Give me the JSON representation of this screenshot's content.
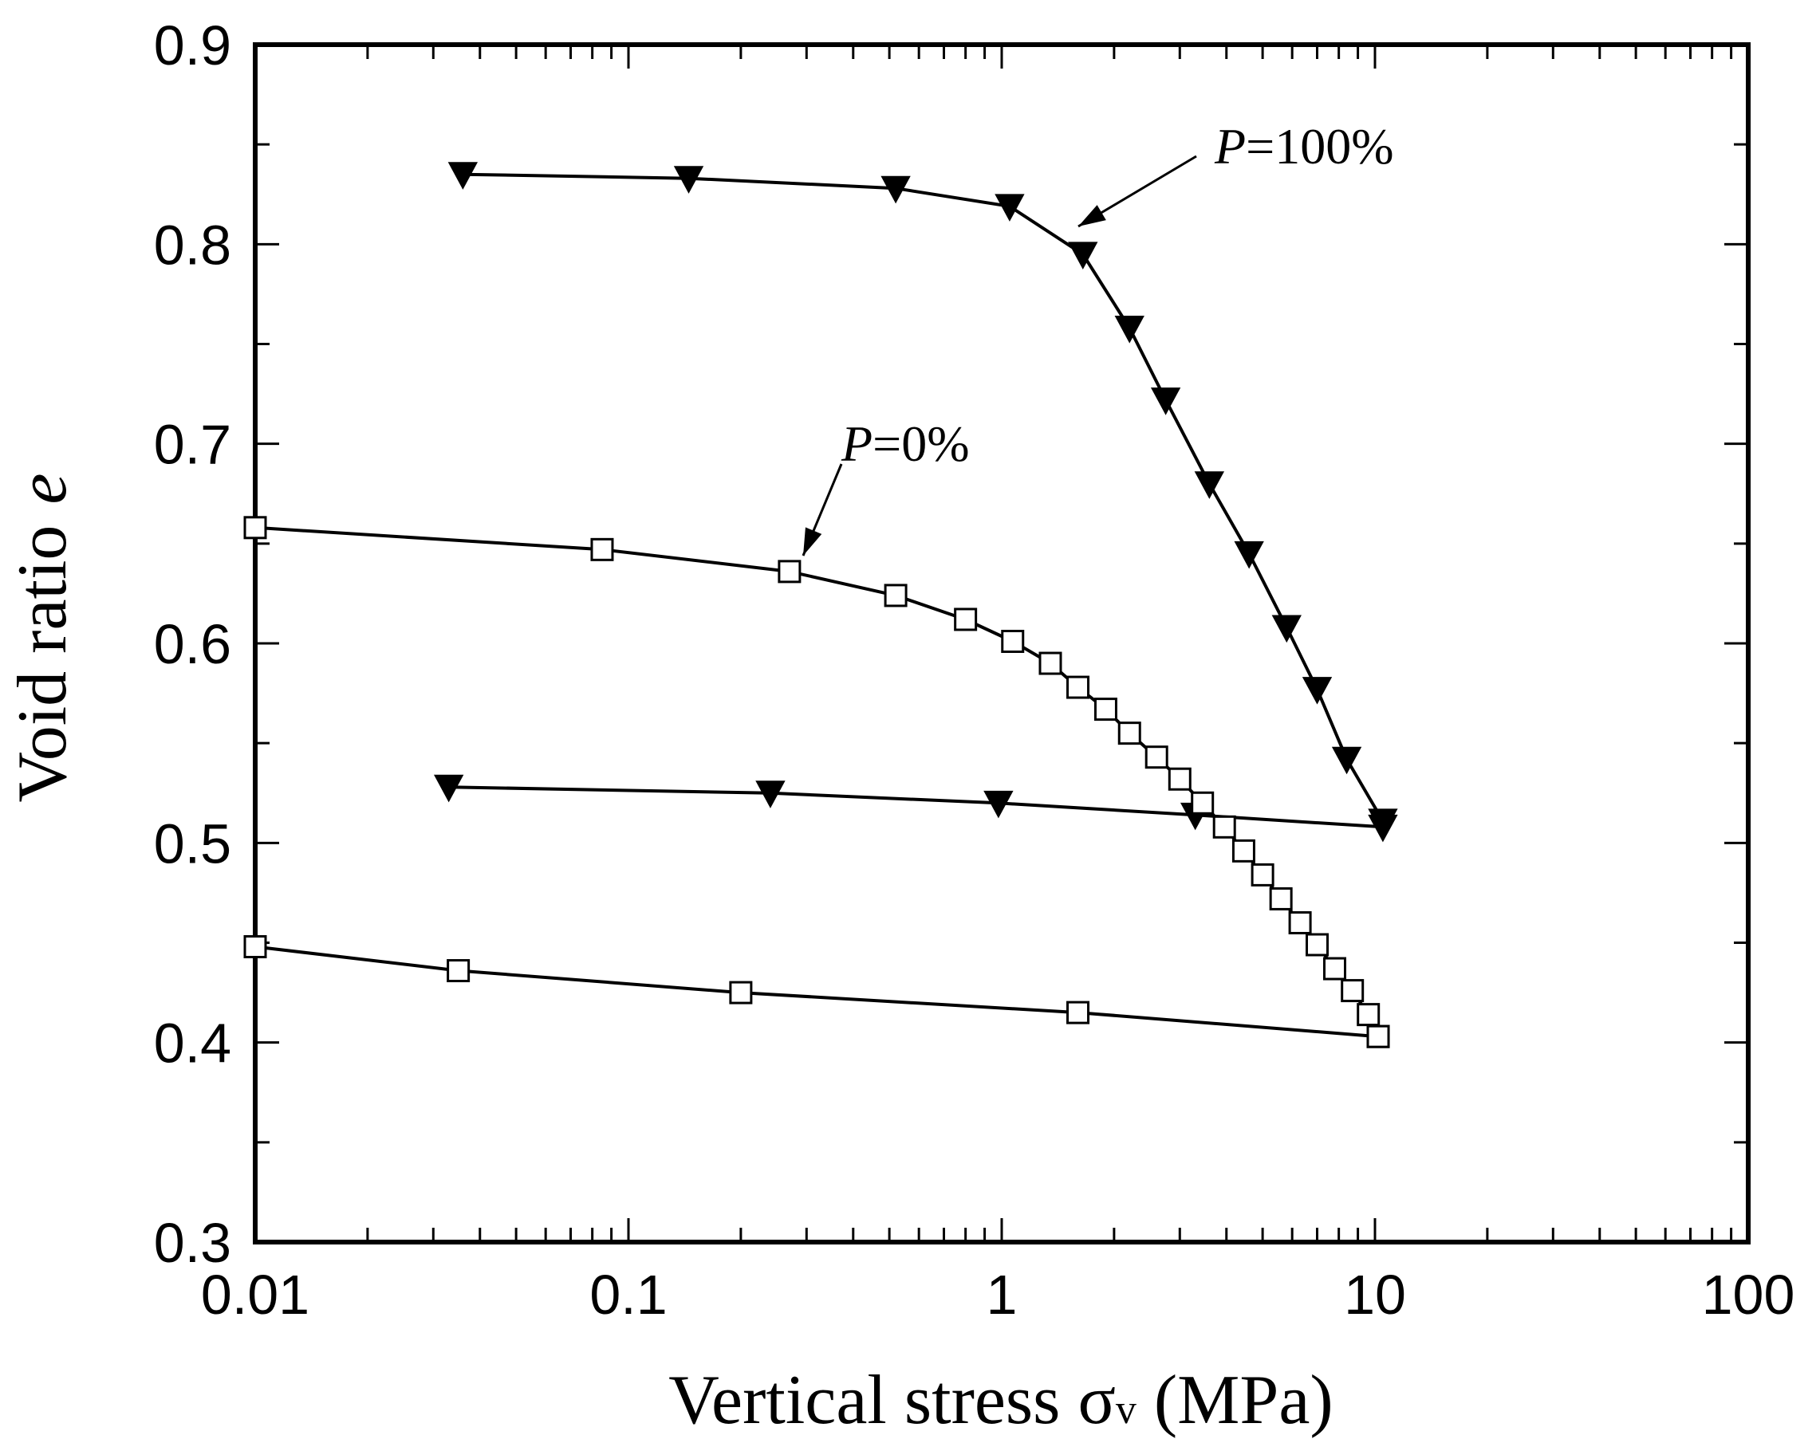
{
  "chart_data": {
    "type": "line",
    "xscale": "log",
    "xlim": [
      0.01,
      100
    ],
    "ylim": [
      0.3,
      0.9
    ],
    "xticks": [
      "0.01",
      "0.1",
      "1",
      "10",
      "100"
    ],
    "yticks": [
      "0.3",
      "0.4",
      "0.5",
      "0.6",
      "0.7",
      "0.8",
      "0.9"
    ],
    "ytick_values": [
      0.3,
      0.4,
      0.5,
      0.6,
      0.7,
      0.8,
      0.9
    ],
    "xlabel": "Vertical stress σv (MPa)",
    "xlabel_main": "Vertical stress ",
    "xlabel_symbol": "σ",
    "xlabel_sub": "v",
    "xlabel_unit": " (MPa)",
    "ylabel": "Void ratio e",
    "ylabel_main": "Void ratio",
    "ylabel_var": "e",
    "series": [
      {
        "name": "P=100% loading",
        "marker": "filled-triangle-down",
        "points": [
          [
            0.036,
            0.835
          ],
          [
            0.145,
            0.833
          ],
          [
            0.52,
            0.828
          ],
          [
            1.05,
            0.819
          ],
          [
            1.65,
            0.795
          ],
          [
            2.2,
            0.758
          ],
          [
            2.75,
            0.722
          ],
          [
            3.6,
            0.68
          ],
          [
            4.6,
            0.645
          ],
          [
            5.8,
            0.608
          ],
          [
            7.0,
            0.577
          ],
          [
            8.4,
            0.542
          ],
          [
            10.5,
            0.511
          ]
        ]
      },
      {
        "name": "P=100% unloading",
        "marker": "filled-triangle-down",
        "points": [
          [
            10.5,
            0.508
          ],
          [
            3.3,
            0.514
          ],
          [
            0.98,
            0.52
          ],
          [
            0.24,
            0.525
          ],
          [
            0.033,
            0.528
          ]
        ]
      },
      {
        "name": "P=0% loading",
        "marker": "open-square",
        "points": [
          [
            0.01,
            0.658
          ],
          [
            0.085,
            0.647
          ],
          [
            0.27,
            0.636
          ],
          [
            0.52,
            0.624
          ],
          [
            0.8,
            0.612
          ],
          [
            1.07,
            0.601
          ],
          [
            1.35,
            0.59
          ],
          [
            1.6,
            0.578
          ],
          [
            1.9,
            0.567
          ],
          [
            2.2,
            0.555
          ],
          [
            2.6,
            0.543
          ],
          [
            3.0,
            0.532
          ],
          [
            3.45,
            0.52
          ],
          [
            3.95,
            0.508
          ],
          [
            4.45,
            0.496
          ],
          [
            5.0,
            0.484
          ],
          [
            5.6,
            0.472
          ],
          [
            6.3,
            0.46
          ],
          [
            7.0,
            0.449
          ],
          [
            7.8,
            0.437
          ],
          [
            8.7,
            0.426
          ],
          [
            9.6,
            0.414
          ],
          [
            10.2,
            0.403
          ]
        ]
      },
      {
        "name": "P=0% unloading",
        "marker": "open-square",
        "points": [
          [
            10.2,
            0.403
          ],
          [
            1.6,
            0.415
          ],
          [
            0.2,
            0.425
          ],
          [
            0.035,
            0.436
          ],
          [
            0.01,
            0.448
          ]
        ]
      }
    ],
    "annotations": [
      {
        "var": "P",
        "text": "=100%",
        "target": [
          1.45,
          0.81
        ]
      },
      {
        "var": "P",
        "text": "=0%",
        "target": [
          0.28,
          0.636
        ]
      }
    ]
  }
}
